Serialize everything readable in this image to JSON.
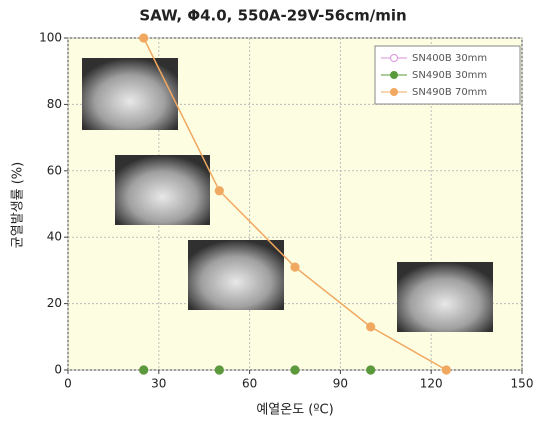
{
  "chart_data": {
    "type": "line",
    "title": "SAW,  Φ4.0, 550A-29V-56cm/min",
    "x_label": "예열온도 (ºC)",
    "y_label": "균열발생률 (%)",
    "xlim": [
      0,
      150
    ],
    "xticks": [
      0,
      30,
      60,
      90,
      120,
      150
    ],
    "ylim": [
      0,
      100
    ],
    "yticks": [
      0,
      20,
      40,
      60,
      80,
      100
    ],
    "grid": true,
    "legend": "upper right",
    "series": [
      {
        "name": "SN400B 30mm",
        "color": "#d890d8",
        "marker": "open",
        "line": false,
        "x": [
          25,
          50,
          75,
          100
        ],
        "values": [
          0,
          0,
          0,
          0
        ]
      },
      {
        "name": "SN490B 30mm",
        "color": "#5a9a3a",
        "marker": "filled",
        "line": false,
        "x": [
          25,
          50,
          75,
          100
        ],
        "values": [
          0,
          0,
          0,
          0
        ]
      },
      {
        "name": "SN490B 70mm",
        "color": "#f0a860",
        "marker": "filled",
        "line": true,
        "x": [
          25,
          50,
          75,
          100,
          125
        ],
        "values": [
          100,
          54,
          31,
          13,
          0
        ]
      }
    ]
  }
}
